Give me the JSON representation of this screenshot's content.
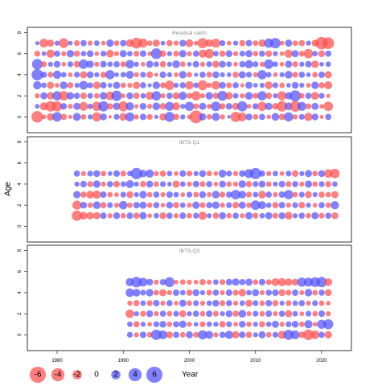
{
  "chart_data": {
    "type": "bubble",
    "xlabel": "Year",
    "ylabel": "Age",
    "xlim": [
      1975.5,
      2024.5
    ],
    "ylim": [
      -1.5,
      8.5
    ],
    "x_ticks": [
      1980,
      1990,
      2000,
      2010,
      2020
    ],
    "y_ticks": [
      0,
      2,
      4,
      6,
      8
    ],
    "colors": {
      "positive": "#5050ff",
      "negative": "#ff4c4c"
    },
    "legend": {
      "values": [
        -6,
        -4,
        -2,
        0,
        2,
        4,
        6
      ],
      "labels": [
        "-6",
        "-4",
        "-2",
        "0",
        "2",
        "4",
        "6"
      ],
      "placement": "bottom-left"
    },
    "panels": [
      {
        "title": "Residual catch",
        "years": [
          1977,
          2021
        ],
        "ages": [
          0,
          7
        ],
        "residuals": [
          [
            -3.1,
            -0.5,
            -1.3,
            2.1,
            -0.9,
            -0.4,
            1.5,
            -0.7,
            0.6,
            -2.0,
            1.1,
            -0.3,
            0.8,
            -1.4,
            1.9,
            -0.6,
            1.0,
            -0.8,
            0.4,
            -1.2,
            2.3,
            -0.9,
            0.6,
            -0.5,
            -3.8,
            1.2,
            -0.7,
            1.5,
            -0.6,
            0.3,
            -2.4,
            -1.8,
            1.1,
            -0.7,
            0.9,
            -0.5,
            1.4,
            -1.0,
            2.0,
            -0.6,
            0.8,
            -1.6,
            1.1,
            -0.4,
            0.9
          ],
          [
            0.5,
            -1.5,
            -2.6,
            -2.4,
            1.0,
            -0.6,
            1.2,
            -1.8,
            0.7,
            -2.1,
            2.5,
            -0.9,
            1.3,
            -2.3,
            1.6,
            -0.4,
            1.1,
            -0.6,
            1.4,
            -1.0,
            1.9,
            -1.5,
            0.6,
            2.0,
            -0.8,
            1.2,
            -0.6,
            2.2,
            -0.9,
            1.0,
            -1.2,
            2.4,
            -0.5,
            0.9,
            -2.0,
            1.3,
            -1.0,
            -2.6,
            1.4,
            -2.7,
            1.9,
            -0.8,
            1.2,
            -0.5,
            -2.1
          ],
          [
            -0.6,
            1.2,
            -1.3,
            2.0,
            -2.1,
            1.3,
            0.9,
            -1.0,
            0.8,
            -0.7,
            1.3,
            -1.7,
            2.6,
            -0.5,
            1.1,
            -0.9,
            0.7,
            -1.5,
            2.1,
            -0.6,
            0.9,
            -1.2,
            1.6,
            -0.8,
            -2.0,
            -0.6,
            1.3,
            -0.9,
            2.3,
            -1.3,
            0.7,
            -0.6,
            1.4,
            -0.8,
            2.0,
            -1.0,
            0.6,
            -1.9,
            1.2,
            2.9,
            -0.7,
            0.9,
            -1.4,
            0.8,
            -0.4
          ],
          [
            1.6,
            0.7,
            -1.2,
            -0.5,
            1.4,
            -0.9,
            0.6,
            1.8,
            0.8,
            -1.3,
            1.0,
            0.5,
            1.2,
            -0.7,
            -0.6,
            -1.2,
            0.9,
            0.4,
            1.3,
            -0.8,
            -2.1,
            0.6,
            0.9,
            -1.6,
            0.7,
            -2.3,
            -0.6,
            -1.7,
            1.1,
            -0.8,
            0.9,
            -0.4,
            1.2,
            0.5,
            0.6,
            -1.4,
            0.8,
            -0.7,
            0.5,
            1.1,
            0.6,
            -0.5,
            1.3,
            -0.9,
            -1.5
          ],
          [
            3.0,
            0.9,
            -0.8,
            1.6,
            0.7,
            -0.5,
            0.8,
            -1.2,
            1.1,
            0.6,
            -0.9,
            2.0,
            0.5,
            0.7,
            1.5,
            -0.6,
            0.8,
            -1.0,
            -0.4,
            1.0,
            0.6,
            -0.5,
            1.3,
            -0.7,
            0.4,
            0.9,
            -0.8,
            1.1,
            0.6,
            0.5,
            -0.9,
            1.2,
            0.8,
            -0.6,
            2.0,
            0.7,
            -0.5,
            0.6,
            1.4,
            -0.8,
            0.9,
            0.5,
            -0.7,
            1.0,
            -1.2
          ],
          [
            2.6,
            -0.8,
            0.6,
            1.1,
            -0.5,
            0.8,
            -1.0,
            2.1,
            1.3,
            -0.6,
            1.0,
            0.7,
            0.9,
            -0.8,
            1.7,
            0.6,
            -0.5,
            1.2,
            0.7,
            -0.9,
            0.6,
            1.4,
            -0.7,
            0.5,
            1.0,
            -0.6,
            0.8,
            -1.2,
            1.1,
            0.7,
            -0.5,
            0.9,
            1.6,
            0.8,
            -0.6,
            2.1,
            0.7,
            -0.5,
            1.2,
            -0.8,
            0.6,
            1.0,
            -1.3,
            0.5,
            0.7
          ],
          [
            -0.8,
            0.5,
            -1.6,
            0.9,
            -0.6,
            1.3,
            -0.9,
            0.7,
            1.1,
            -0.5,
            0.8,
            -1.4,
            -0.6,
            1.2,
            0.7,
            -0.8,
            1.0,
            -0.5,
            2.7,
            -1.0,
            0.6,
            -0.8,
            1.3,
            -0.6,
            0.9,
            -1.5,
            -2.1,
            0.7,
            -0.9,
            1.1,
            -0.6,
            0.8,
            1.2,
            -0.7,
            0.9,
            -1.0,
            0.6,
            -0.5,
            -1.6,
            1.2,
            -0.8,
            -2.1,
            0.7,
            -1.1,
            0.9
          ],
          [
            0.4,
            -1.8,
            -1.2,
            0.6,
            -2.2,
            0.5,
            -0.8,
            0.9,
            -0.6,
            0.7,
            -0.5,
            1.3,
            -0.7,
            1.0,
            -1.4,
            -2.8,
            -1.9,
            -0.7,
            -1.2,
            0.5,
            -0.9,
            -0.6,
            1.1,
            -1.4,
            -0.5,
            -2.4,
            -1.3,
            -1.9,
            0.8,
            -0.5,
            0.6,
            -0.9,
            1.0,
            -0.7,
            -1.3,
            2.0,
            2.6,
            -0.5,
            1.2,
            -0.7,
            -0.9,
            0.6,
            -1.1,
            -3.6,
            -3.2
          ]
        ]
      },
      {
        "title": "IBTS-Q1",
        "years": [
          1983,
          2022
        ],
        "ages": [
          1,
          5
        ],
        "residuals": [
          [
            -2.5,
            -1.4,
            -1.3,
            -1.2,
            1.0,
            -0.6,
            1.1,
            -0.7,
            1.0,
            -0.9,
            1.3,
            -0.5,
            0.7,
            -1.1,
            0.9,
            -0.6,
            1.0,
            -0.7,
            0.8,
            -1.6,
            0.6,
            -0.9,
            1.2,
            -0.7,
            0.9,
            -0.6,
            1.3,
            -0.8,
            0.7,
            1.2,
            -0.8,
            1.1,
            -1.4,
            0.6,
            0.9,
            -0.7,
            1.2,
            -0.8,
            0.9,
            -1.1
          ],
          [
            -1.9,
            1.1,
            -0.7,
            1.4,
            -0.9,
            0.8,
            -0.6,
            1.7,
            -0.7,
            1.0,
            1.2,
            -0.7,
            0.9,
            -0.5,
            1.1,
            -0.9,
            0.7,
            -0.6,
            1.3,
            -0.8,
            0.9,
            1.3,
            -0.6,
            0.8,
            -1.0,
            1.2,
            -0.7,
            2.1,
            1.5,
            0.7,
            -0.9,
            1.0,
            -0.6,
            0.8,
            -1.0,
            0.6,
            -0.5,
            0.9,
            -0.7,
            1.6
          ],
          [
            1.3,
            -0.9,
            -1.4,
            -1.6,
            1.0,
            -0.7,
            -0.5,
            0.8,
            -1.1,
            0.6,
            1.3,
            -0.7,
            0.9,
            -0.6,
            1.0,
            0.7,
            -0.5,
            0.8,
            -0.7,
            1.1,
            -0.6,
            1.4,
            -0.8,
            0.9,
            2.1,
            1.4,
            -0.8,
            0.7,
            -1.4,
            0.9,
            -0.6,
            1.0,
            2.0,
            -0.7,
            0.8,
            -1.1,
            0.6,
            -0.9,
            -0.7,
            -1.2
          ],
          [
            0.6,
            1.0,
            -0.8,
            1.3,
            -0.6,
            0.9,
            -1.0,
            0.7,
            1.5,
            0.6,
            -0.9,
            1.1,
            -0.7,
            0.8,
            0.5,
            -1.2,
            0.7,
            -0.6,
            1.0,
            -0.8,
            0.9,
            -0.5,
            1.1,
            -0.7,
            -0.6,
            1.3,
            -0.9,
            0.8,
            1.1,
            -0.7,
            0.6,
            1.0,
            -0.8,
            0.9,
            -0.6,
            1.2,
            -0.7,
            0.8,
            -0.9,
            0.7
          ],
          [
            0.9,
            -0.6,
            0.8,
            1.1,
            -0.7,
            0.5,
            1.0,
            -0.8,
            0.7,
            3.0,
            1.3,
            1.6,
            -0.6,
            -0.9,
            0.7,
            -0.5,
            1.0,
            -0.8,
            0.6,
            1.1,
            -0.7,
            -0.5,
            1.4,
            0.8,
            -0.6,
            1.0,
            1.9,
            2.9,
            0.9,
            -0.6,
            0.7,
            -0.5,
            0.8,
            -1.0,
            0.6,
            1.2,
            -0.7,
            1.1,
            -1.7,
            -2.1
          ]
        ]
      },
      {
        "title": "IBTS-Q3",
        "years": [
          1991,
          2021
        ],
        "ages": [
          0,
          5
        ],
        "residuals": [
          [
            0.8,
            -0.6,
            1.0,
            -0.7,
            2.5,
            1.8,
            -1.1,
            0.9,
            -0.7,
            1.2,
            -0.8,
            2.0,
            1.5,
            -0.6,
            0.9,
            1.6,
            -1.3,
            1.0,
            -0.9,
            0.6,
            1.2,
            -0.7,
            0.8,
            -1.5,
            2.4,
            1.8,
            -1.0,
            -2.6,
            -1.7,
            0.9,
            -1.3
          ],
          [
            0.7,
            -0.9,
            0.6,
            -0.5,
            0.8,
            1.1,
            -0.7,
            0.9,
            1.3,
            -0.6,
            0.5,
            -0.8,
            0.7,
            0.6,
            -1.0,
            0.8,
            -0.5,
            1.1,
            -0.7,
            0.6,
            -0.9,
            0.7,
            1.2,
            -0.6,
            0.8,
            1.1,
            -0.7,
            1.6,
            -0.5,
            1.9,
            2.3
          ],
          [
            -1.7,
            0.6,
            -0.8,
            1.1,
            -0.6,
            0.9,
            -0.7,
            0.8,
            -1.1,
            0.6,
            0.9,
            -0.7,
            1.0,
            -0.8,
            0.6,
            1.1,
            -0.9,
            1.4,
            -0.6,
            0.8,
            -0.7,
            1.0,
            -0.6,
            0.9,
            -1.2,
            0.7,
            -0.5,
            0.8,
            -0.7,
            1.0,
            -0.6
          ],
          [
            -0.6,
            -0.9,
            0.7,
            -0.8,
            1.0,
            -0.6,
            0.9,
            -0.5,
            1.2,
            -0.7,
            0.8,
            -0.6,
            0.7,
            1.1,
            -0.8,
            0.9,
            -0.6,
            0.7,
            -1.2,
            0.8,
            -0.7,
            1.0,
            -0.9,
            0.6,
            -0.8,
            0.7,
            0.9,
            -0.6,
            0.8,
            -0.7,
            -0.5
          ],
          [
            1.7,
            1.4,
            0.8,
            1.3,
            -0.7,
            -1.2,
            -0.6,
            1.0,
            0.7,
            -0.9,
            1.1,
            0.6,
            -0.8,
            0.9,
            -0.6,
            1.0,
            -0.8,
            -1.3,
            0.7,
            1.2,
            -0.6,
            0.9,
            1.0,
            -1.1,
            -0.8,
            1.0,
            -0.6,
            1.3,
            -0.7,
            0.9,
            -1.1
          ],
          [
            1.6,
            2.6,
            1.8,
            1.1,
            -0.6,
            0.9,
            2.3,
            -0.5,
            -0.7,
            -0.6,
            -0.5,
            -0.9,
            -0.6,
            0.7,
            -0.8,
            1.0,
            1.3,
            0.9,
            1.2,
            -0.7,
            1.0,
            -0.8,
            -1.4,
            -1.6,
            -1.3,
            -1.1,
            2.0,
            1.9,
            2.2,
            2.5,
            -1.4
          ]
        ]
      }
    ]
  }
}
